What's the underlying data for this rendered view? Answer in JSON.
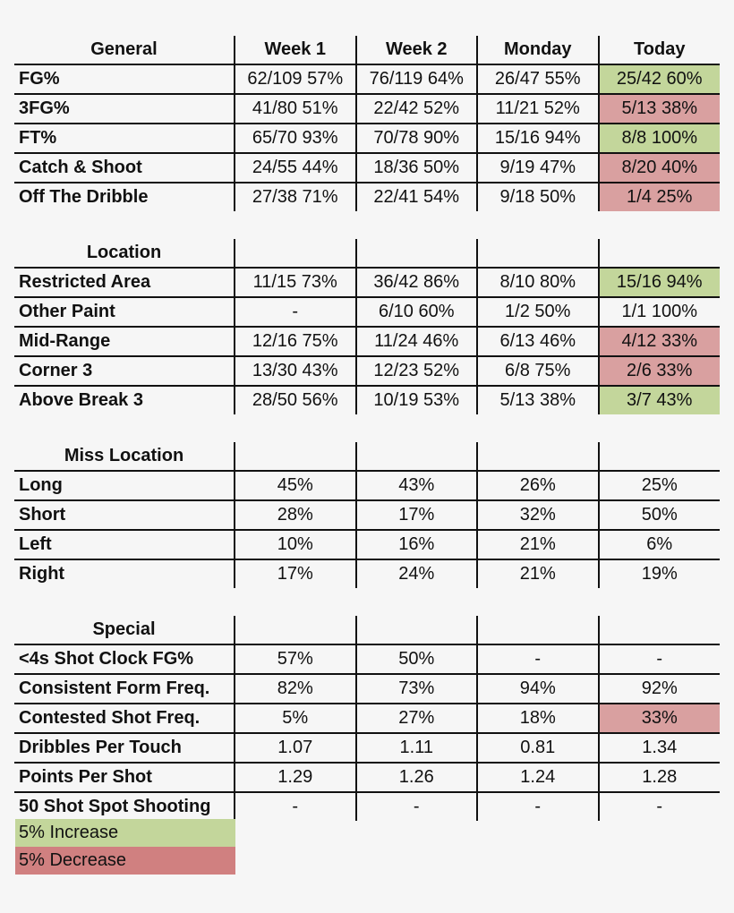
{
  "columns": [
    "Week 1",
    "Week 2",
    "Monday",
    "Today"
  ],
  "sections": [
    {
      "header": "General",
      "rows": [
        {
          "label": "FG%",
          "values": [
            "62/109 57%",
            "76/119 64%",
            "26/47 55%",
            "25/42 60%"
          ],
          "today_status": "increase"
        },
        {
          "label": "3FG%",
          "values": [
            "41/80 51%",
            "22/42 52%",
            "11/21 52%",
            "5/13 38%"
          ],
          "today_status": "decrease"
        },
        {
          "label": "FT%",
          "values": [
            "65/70 93%",
            "70/78 90%",
            "15/16 94%",
            "8/8 100%"
          ],
          "today_status": "increase"
        },
        {
          "label": "Catch & Shoot",
          "values": [
            "24/55 44%",
            "18/36 50%",
            "9/19 47%",
            "8/20 40%"
          ],
          "today_status": "decrease"
        },
        {
          "label": "Off The Dribble",
          "values": [
            "27/38 71%",
            "22/41 54%",
            "9/18 50%",
            "1/4 25%"
          ],
          "today_status": "decrease"
        }
      ]
    },
    {
      "header": "Location",
      "rows": [
        {
          "label": "Restricted Area",
          "values": [
            "11/15 73%",
            "36/42 86%",
            "8/10 80%",
            "15/16 94%"
          ],
          "today_status": "increase"
        },
        {
          "label": "Other Paint",
          "values": [
            "-",
            "6/10 60%",
            "1/2 50%",
            "1/1 100%"
          ],
          "today_status": "none"
        },
        {
          "label": "Mid-Range",
          "values": [
            "12/16 75%",
            "11/24 46%",
            "6/13 46%",
            "4/12 33%"
          ],
          "today_status": "decrease"
        },
        {
          "label": "Corner 3",
          "values": [
            "13/30 43%",
            "12/23 52%",
            "6/8 75%",
            "2/6 33%"
          ],
          "today_status": "decrease"
        },
        {
          "label": "Above Break 3",
          "values": [
            "28/50 56%",
            "10/19 53%",
            "5/13 38%",
            "3/7 43%"
          ],
          "today_status": "increase"
        }
      ]
    },
    {
      "header": "Miss Location",
      "rows": [
        {
          "label": "Long",
          "values": [
            "45%",
            "43%",
            "26%",
            "25%"
          ],
          "today_status": "none"
        },
        {
          "label": "Short",
          "values": [
            "28%",
            "17%",
            "32%",
            "50%"
          ],
          "today_status": "none"
        },
        {
          "label": "Left",
          "values": [
            "10%",
            "16%",
            "21%",
            "6%"
          ],
          "today_status": "none"
        },
        {
          "label": "Right",
          "values": [
            "17%",
            "24%",
            "21%",
            "19%"
          ],
          "today_status": "none"
        }
      ]
    },
    {
      "header": "Special",
      "rows": [
        {
          "label": "<4s Shot Clock FG%",
          "values": [
            "57%",
            "50%",
            "-",
            "-"
          ],
          "today_status": "none"
        },
        {
          "label": "Consistent Form Freq.",
          "values": [
            "82%",
            "73%",
            "94%",
            "92%"
          ],
          "today_status": "none"
        },
        {
          "label": "Contested Shot Freq.",
          "values": [
            "5%",
            "27%",
            "18%",
            "33%"
          ],
          "today_status": "decrease"
        },
        {
          "label": "Dribbles Per Touch",
          "values": [
            "1.07",
            "1.11",
            "0.81",
            "1.34"
          ],
          "today_status": "none"
        },
        {
          "label": "Points Per Shot",
          "values": [
            "1.29",
            "1.26",
            "1.24",
            "1.28"
          ],
          "today_status": "none"
        },
        {
          "label": "50 Shot Spot Shooting",
          "values": [
            "-",
            "-",
            "-",
            "-"
          ],
          "today_status": "none"
        }
      ]
    }
  ],
  "legend": {
    "increase_label": "5% Increase",
    "decrease_label": "5% Decrease",
    "increase_color": "#c3d69b",
    "decrease_color": "#d08080"
  }
}
